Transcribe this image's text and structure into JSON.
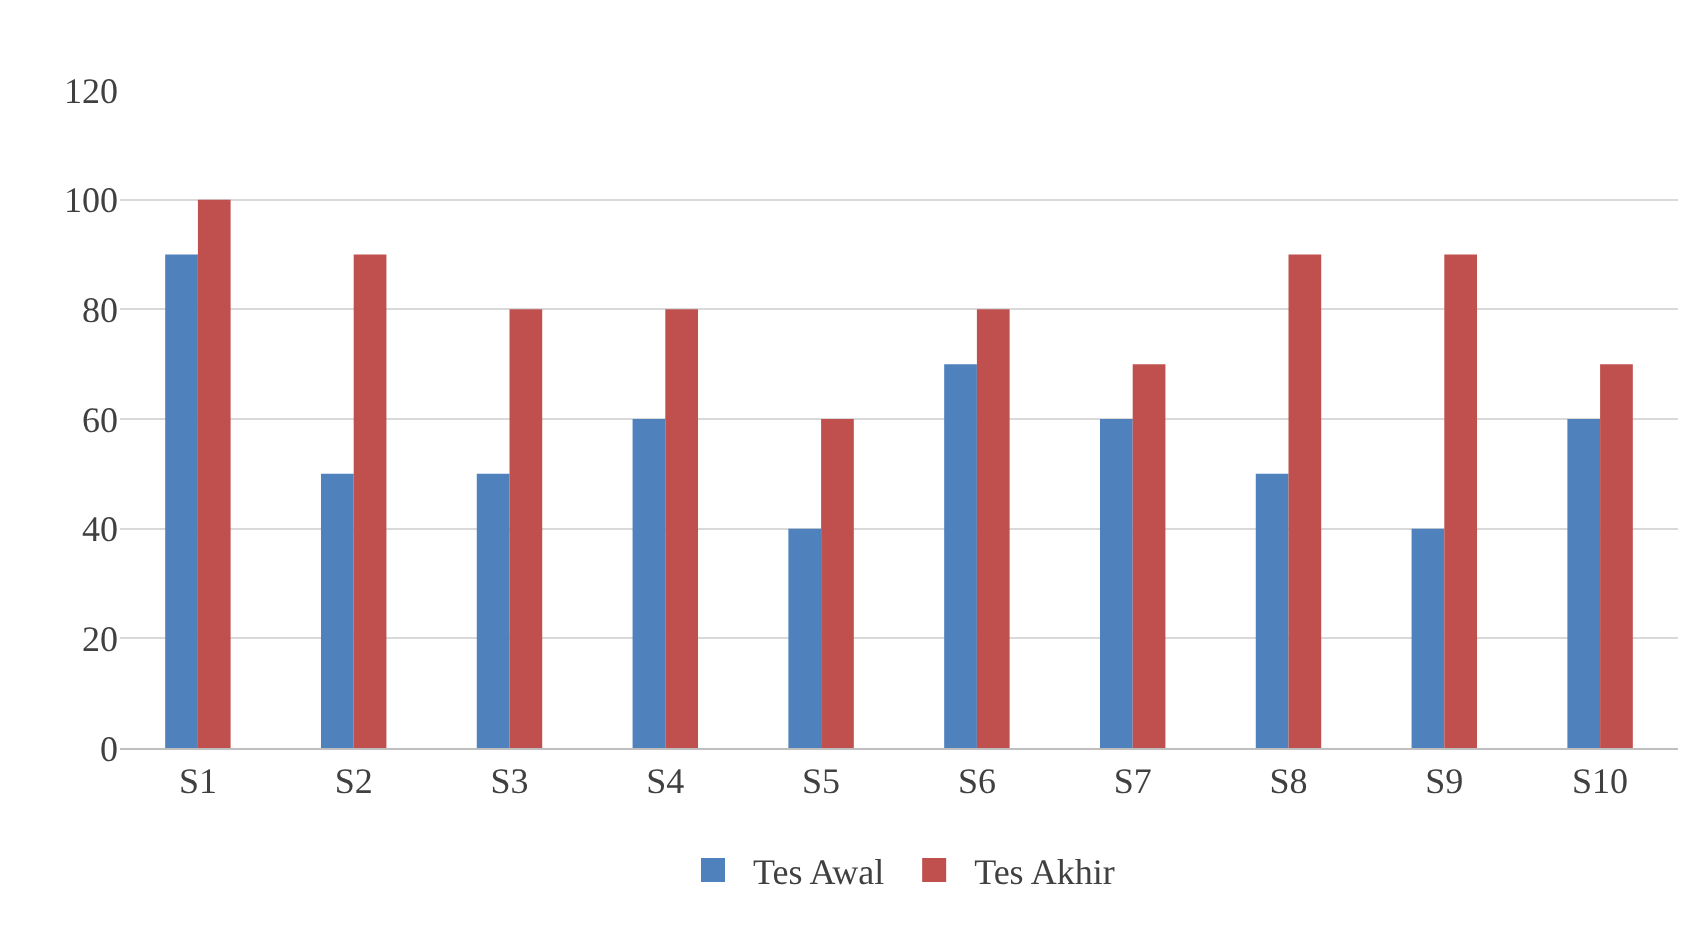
{
  "chart_data": {
    "type": "bar",
    "categories": [
      "S1",
      "S2",
      "S3",
      "S4",
      "S5",
      "S6",
      "S7",
      "S8",
      "S9",
      "S10"
    ],
    "series": [
      {
        "name": "Tes Awal",
        "color": "#4f81bd",
        "values": [
          90,
          50,
          50,
          60,
          40,
          70,
          60,
          50,
          40,
          60
        ]
      },
      {
        "name": "Tes Akhir",
        "color": "#c0504d",
        "values": [
          100,
          90,
          80,
          80,
          60,
          80,
          70,
          90,
          90,
          70
        ]
      }
    ],
    "ylim": [
      0,
      120
    ],
    "yticks": [
      0,
      20,
      40,
      60,
      80,
      100,
      120
    ],
    "grid": "y",
    "legend": "bottom"
  }
}
